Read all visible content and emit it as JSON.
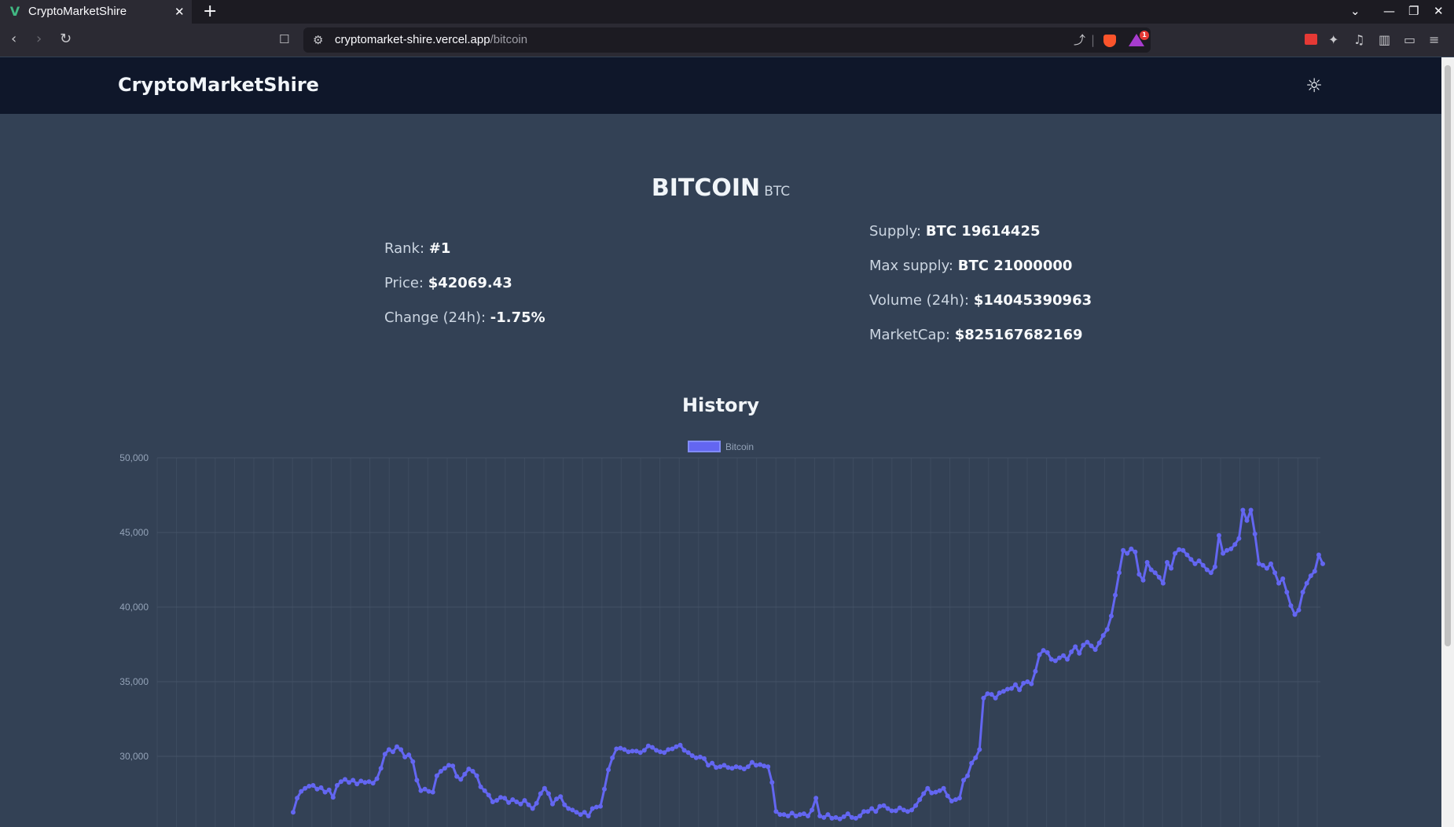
{
  "browser": {
    "tab_title": "CryptoMarketShire",
    "url_host": "cryptomarket-shire.vercel.app",
    "url_path": "/bitcoin",
    "bat_badge": "1"
  },
  "header": {
    "brand": "CryptoMarketShire",
    "theme_icon": "sun-icon"
  },
  "coin": {
    "name": "BITCOIN",
    "symbol": "BTC",
    "rank_label": "Rank:",
    "rank_value": "#1",
    "price_label": "Price:",
    "price_value": "$42069.43",
    "change_label": "Change (24h):",
    "change_value": "-1.75%",
    "supply_label": "Supply:",
    "supply_value": "BTC 19614425",
    "max_supply_label": "Max supply:",
    "max_supply_value": "BTC 21000000",
    "volume_label": "Volume (24h):",
    "volume_value": "$14045390963",
    "marketcap_label": "MarketCap:",
    "marketcap_value": "$825167682169"
  },
  "history": {
    "title": "History"
  },
  "colors": {
    "line": "#6366f1",
    "grid": "#475569",
    "tick": "#94a3b8"
  },
  "chart_data": {
    "type": "line",
    "legend": "top",
    "grid": true,
    "series": [
      {
        "name": "Bitcoin",
        "values": [
          26250,
          27200,
          27650,
          27850,
          28000,
          28050,
          27800,
          27900,
          27600,
          27750,
          27250,
          28050,
          28300,
          28450,
          28250,
          28400,
          28150,
          28350,
          28250,
          28300,
          28200,
          28500,
          29200,
          30150,
          30450,
          30300,
          30650,
          30450,
          29950,
          30100,
          29650,
          28400,
          27700,
          27800,
          27650,
          27600,
          28700,
          29000,
          29200,
          29400,
          29350,
          28650,
          28450,
          28800,
          29150,
          29000,
          28700,
          27950,
          27700,
          27400,
          26950,
          27050,
          27250,
          27200,
          26900,
          27100,
          26950,
          26800,
          27050,
          26750,
          26500,
          26850,
          27500,
          27850,
          27500,
          26800,
          27150,
          27300,
          26750,
          26500,
          26400,
          26250,
          26100,
          26250,
          26000,
          26500,
          26600,
          26650,
          27800,
          29100,
          29900,
          30500,
          30550,
          30450,
          30300,
          30350,
          30350,
          30250,
          30400,
          30700,
          30600,
          30400,
          30300,
          30250,
          30450,
          30500,
          30650,
          30750,
          30400,
          30250,
          30050,
          29900,
          29950,
          29850,
          29400,
          29550,
          29250,
          29300,
          29400,
          29250,
          29200,
          29300,
          29250,
          29150,
          29300,
          29600,
          29400,
          29450,
          29350,
          29300,
          28250,
          26300,
          26100,
          26100,
          26000,
          26200,
          26000,
          26100,
          26150,
          26000,
          26400,
          27200,
          26000,
          25900,
          26100,
          25850,
          25900,
          25800,
          25950,
          26150,
          25900,
          25850,
          26000,
          26300,
          26300,
          26500,
          26300,
          26650,
          26700,
          26500,
          26350,
          26350,
          26550,
          26400,
          26300,
          26400,
          26700,
          27100,
          27500,
          27850,
          27550,
          27600,
          27700,
          27850,
          27350,
          27000,
          27100,
          27200,
          28400,
          28700,
          29550,
          29900,
          30450,
          33900,
          34200,
          34150,
          33900,
          34250,
          34350,
          34500,
          34550,
          34800,
          34450,
          34900,
          35000,
          34850,
          35700,
          36800,
          37100,
          36950,
          36500,
          36400,
          36600,
          36750,
          36500,
          37000,
          37350,
          36900,
          37450,
          37650,
          37400,
          37150,
          37600,
          38100,
          38500,
          39400,
          40800,
          42300,
          43800,
          43600,
          43900,
          43700,
          42200,
          41800,
          43000,
          42500,
          42300,
          42000,
          41600,
          43000,
          42600,
          43600,
          43850,
          43800,
          43500,
          43200,
          42900,
          43100,
          42800,
          42500,
          42300,
          42700,
          44800,
          43600,
          43800,
          43900,
          44200,
          44600,
          46500,
          45800,
          46500,
          44900,
          42900,
          42800,
          42600,
          42900,
          42300,
          41600,
          41900,
          41000,
          40100,
          39500,
          39800,
          41000,
          41600,
          42100,
          42400,
          43500,
          42900
        ]
      }
    ],
    "ylim": [
      20000,
      50000
    ],
    "y_ticks_visible": [
      "30,000",
      "35,000",
      "40,000",
      "45,000",
      "50,000"
    ]
  }
}
